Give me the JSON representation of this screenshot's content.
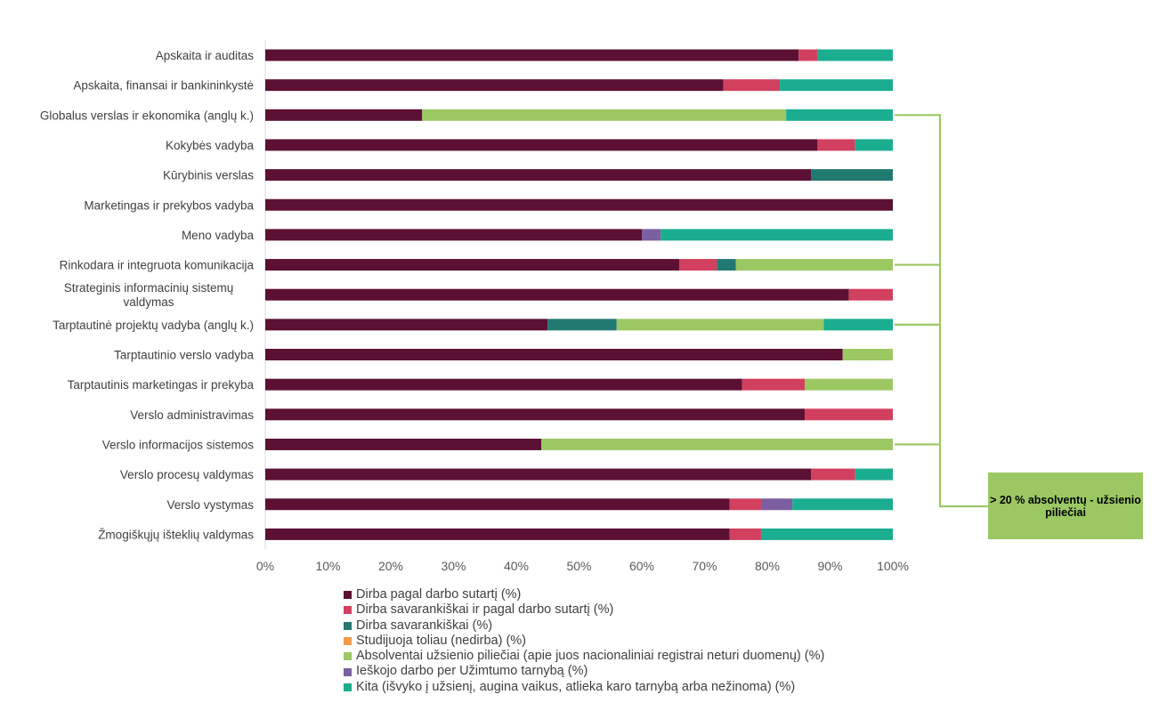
{
  "chart_data": {
    "type": "bar",
    "orientation": "horizontal",
    "stacked": "percent",
    "categories": [
      "Apskaita ir auditas",
      "Apskaita, finansai ir bankininkystė",
      "Globalus verslas ir ekonomika (anglų k.)",
      "Kokybės vadyba",
      "Kūrybinis verslas",
      "Marketingas ir prekybos vadyba",
      "Meno vadyba",
      "Rinkodara ir integruota komunikacija",
      "Strateginis informacinių sistemų valdymas",
      "Tarptautinė projektų vadyba (anglų k.)",
      "Tarptautinio verslo vadyba",
      "Tarptautinis marketingas ir prekyba",
      "Verslo administravimas",
      "Verslo informacijos sistemos",
      "Verslo procesų valdymas",
      "Verslo vystymas",
      "Žmogiškųjų išteklių valdymas"
    ],
    "series": [
      {
        "name": "Dirba pagal darbo sutartį (%)",
        "color": "#5c1033",
        "values": [
          85,
          73,
          25,
          88,
          87,
          100,
          60,
          66,
          93,
          45,
          92,
          76,
          86,
          44,
          87,
          74,
          74
        ]
      },
      {
        "name": "Dirba savarankiškai ir pagal darbo sutartį (%)",
        "color": "#d2405f",
        "values": [
          3,
          9,
          0,
          6,
          0,
          0,
          0,
          6,
          7,
          0,
          0,
          10,
          14,
          0,
          7,
          5,
          5
        ]
      },
      {
        "name": "Dirba savarankiškai (%)",
        "color": "#217a72",
        "values": [
          0,
          0,
          0,
          0,
          13,
          0,
          0,
          3,
          0,
          11,
          0,
          0,
          0,
          0,
          0,
          0,
          0
        ]
      },
      {
        "name": "Studijuoja toliau (nedirba) (%)",
        "color": "#f39b4a",
        "values": [
          0,
          0,
          0,
          0,
          0,
          0,
          0,
          0,
          0,
          0,
          0,
          0,
          0,
          0,
          0,
          0,
          0
        ]
      },
      {
        "name": "Absolventai užsienio piliečiai (apie juos nacionaliniai registrai neturi duomenų) (%)",
        "color": "#9bc863",
        "values": [
          0,
          0,
          58,
          0,
          0,
          0,
          0,
          25,
          0,
          33,
          8,
          14,
          0,
          56,
          0,
          0,
          0
        ]
      },
      {
        "name": "Ieškojo darbo per Užimtumo tarnybą (%)",
        "color": "#7b5fa0",
        "values": [
          0,
          0,
          0,
          0,
          0,
          0,
          3,
          0,
          0,
          0,
          0,
          0,
          0,
          0,
          0,
          5,
          0
        ]
      },
      {
        "name": "Kita (išvyko į užsienį, augina vaikus, atlieka karo tarnybą arba nežinoma) (%)",
        "color": "#1aad8f",
        "values": [
          12,
          18,
          17,
          6,
          0,
          0,
          37,
          0,
          0,
          11,
          0,
          0,
          0,
          0,
          6,
          16,
          21
        ]
      }
    ],
    "x_ticks": [
      "0%",
      "10%",
      "20%",
      "30%",
      "40%",
      "50%",
      "60%",
      "70%",
      "80%",
      "90%",
      "100%"
    ],
    "xlim": [
      0,
      100
    ],
    "grid": false,
    "legend_position": "bottom",
    "annotation": {
      "text": "> 20 % absolventų - užsienio piliečiai",
      "points_to": [
        "Globalus verslas ir ekonomika (anglų k.)",
        "Rinkodara ir integruota komunikacija",
        "Tarptautinė projektų vadyba (anglų k.)",
        "Verslo informacijos sistemos"
      ],
      "color": "#9bc863"
    }
  }
}
